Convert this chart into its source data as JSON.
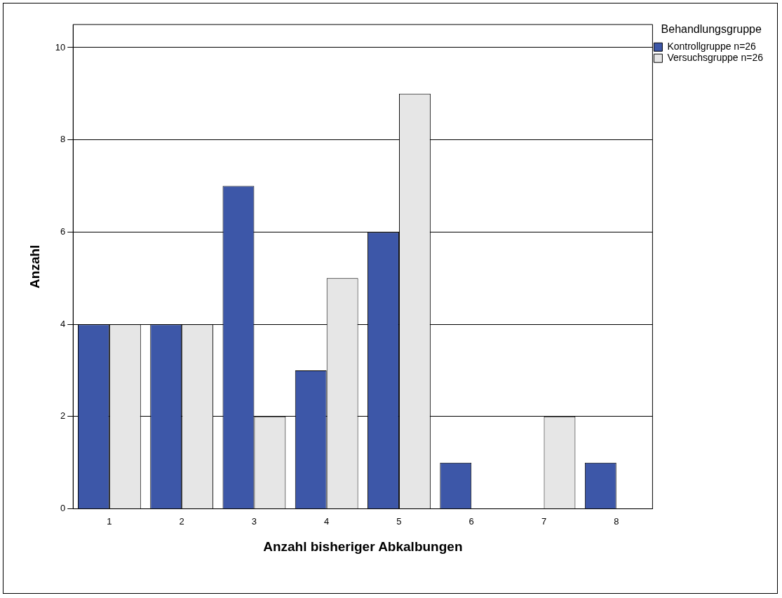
{
  "chart_data": {
    "type": "bar",
    "xlabel": "Anzahl bisheriger Abkalbungen",
    "ylabel": "Anzahl",
    "legend_title": "Behandlungsgruppe",
    "categories": [
      "1",
      "2",
      "3",
      "4",
      "5",
      "6",
      "7",
      "8"
    ],
    "series": [
      {
        "name": "Kontrollgruppe n=26",
        "color": "#3d57a8",
        "values": [
          4,
          4,
          7,
          3,
          6,
          1,
          0,
          1
        ]
      },
      {
        "name": "Versuchsgruppe n=26",
        "color": "#e6e6e6",
        "values": [
          4,
          4,
          2,
          5,
          9,
          0,
          2,
          0
        ]
      }
    ],
    "ylim": [
      0,
      10.5
    ],
    "yticks": [
      0,
      2,
      4,
      6,
      8,
      10
    ],
    "grid": "y",
    "legend": "top right"
  }
}
